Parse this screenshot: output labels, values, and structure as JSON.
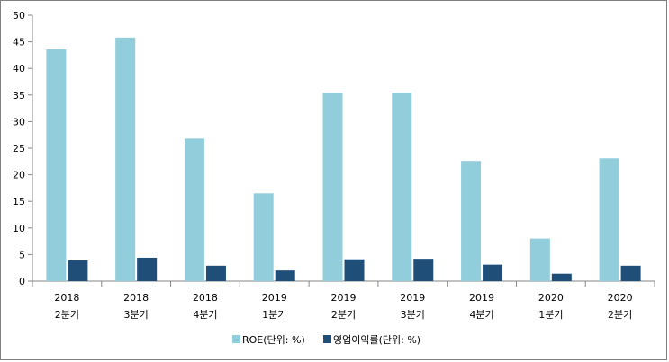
{
  "chart_data": {
    "type": "bar",
    "title": "",
    "xlabel": "",
    "ylabel": "",
    "categories": [
      [
        "2018",
        "2분기"
      ],
      [
        "2018",
        "3분기"
      ],
      [
        "2018",
        "4분기"
      ],
      [
        "2019",
        "1분기"
      ],
      [
        "2019",
        "2분기"
      ],
      [
        "2019",
        "3분기"
      ],
      [
        "2019",
        "4분기"
      ],
      [
        "2020",
        "1분기"
      ],
      [
        "2020",
        "2분기"
      ]
    ],
    "series": [
      {
        "name": "ROE(단위: %)",
        "color": "#92cddc",
        "values": [
          43.6,
          45.8,
          26.8,
          16.5,
          35.4,
          35.4,
          22.6,
          8.0,
          23.1
        ]
      },
      {
        "name": "영업이익률(단위: %)",
        "color": "#1f4e79",
        "values": [
          3.9,
          4.4,
          2.9,
          2.0,
          4.1,
          4.2,
          3.1,
          1.4,
          2.9
        ]
      }
    ],
    "ylim": [
      0,
      50
    ],
    "yticks": [
      0,
      5,
      10,
      15,
      20,
      25,
      30,
      35,
      40,
      45,
      50
    ],
    "grid": false,
    "legend_position": "bottom"
  }
}
